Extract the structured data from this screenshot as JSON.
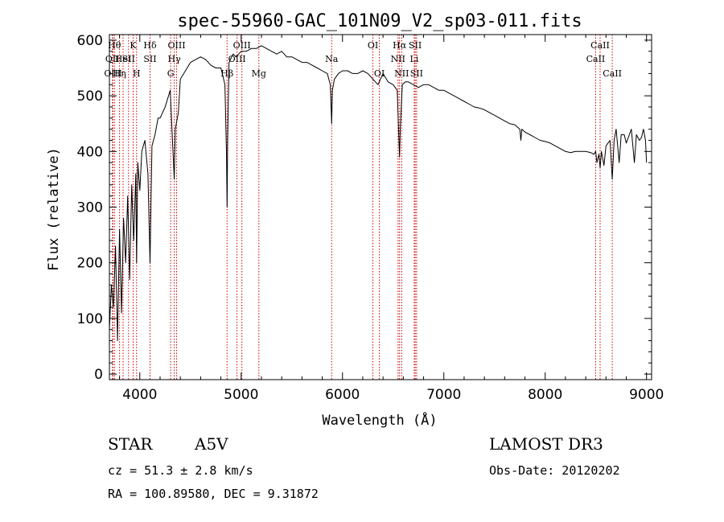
{
  "chart_data": {
    "type": "line",
    "title": "spec-55960-GAC_101N09_V2_sp03-011.fits",
    "xlabel": "Wavelength (Å)",
    "ylabel": "Flux (relative)",
    "xlim": [
      3700,
      9050
    ],
    "ylim": [
      -10,
      610
    ],
    "x_ticks": [
      4000,
      5000,
      6000,
      7000,
      8000,
      9000
    ],
    "y_ticks": [
      0,
      100,
      200,
      300,
      400,
      500,
      600
    ],
    "x_tick_labels": [
      "4000",
      "5000",
      "6000",
      "7000",
      "8000",
      "9000"
    ],
    "y_tick_labels": [
      "0",
      "100",
      "200",
      "300",
      "400",
      "500",
      "600"
    ],
    "series": [
      {
        "name": "flux",
        "color": "#000000",
        "x": [
          3700,
          3720,
          3740,
          3760,
          3780,
          3800,
          3820,
          3840,
          3860,
          3880,
          3900,
          3920,
          3940,
          3960,
          3968,
          3980,
          4000,
          4020,
          4050,
          4080,
          4101,
          4120,
          4150,
          4180,
          4200,
          4250,
          4300,
          4340,
          4350,
          4380,
          4400,
          4450,
          4500,
          4550,
          4600,
          4650,
          4700,
          4750,
          4800,
          4840,
          4855,
          4861,
          4867,
          4880,
          4920,
          4950,
          5000,
          5050,
          5100,
          5150,
          5200,
          5250,
          5300,
          5350,
          5400,
          5450,
          5500,
          5550,
          5600,
          5650,
          5700,
          5750,
          5800,
          5850,
          5880,
          5893,
          5900,
          5920,
          5960,
          6000,
          6050,
          6100,
          6150,
          6200,
          6250,
          6300,
          6350,
          6400,
          6450,
          6500,
          6540,
          6555,
          6563,
          6570,
          6590,
          6620,
          6650,
          6700,
          6750,
          6800,
          6850,
          6900,
          6950,
          7000,
          7050,
          7100,
          7150,
          7200,
          7250,
          7300,
          7350,
          7400,
          7450,
          7500,
          7550,
          7600,
          7650,
          7700,
          7750,
          7760,
          7770,
          7800,
          7850,
          7900,
          7950,
          8000,
          8050,
          8100,
          8150,
          8200,
          8250,
          8300,
          8350,
          8400,
          8450,
          8480,
          8498,
          8510,
          8530,
          8542,
          8555,
          8580,
          8600,
          8640,
          8662,
          8680,
          8700,
          8730,
          8750,
          8780,
          8800,
          8830,
          8850,
          8880,
          8900,
          8930,
          8950,
          8970,
          8990,
          9000
        ],
        "values": [
          80,
          160,
          120,
          230,
          60,
          260,
          110,
          280,
          200,
          320,
          170,
          340,
          240,
          360,
          200,
          380,
          330,
          400,
          420,
          360,
          200,
          410,
          430,
          460,
          460,
          480,
          510,
          350,
          440,
          470,
          530,
          545,
          560,
          565,
          570,
          565,
          555,
          550,
          550,
          520,
          400,
          300,
          420,
          560,
          575,
          570,
          580,
          580,
          585,
          585,
          590,
          585,
          580,
          575,
          580,
          570,
          570,
          565,
          560,
          560,
          555,
          550,
          545,
          540,
          520,
          450,
          510,
          530,
          540,
          545,
          545,
          540,
          540,
          545,
          540,
          530,
          520,
          540,
          525,
          520,
          510,
          430,
          390,
          440,
          520,
          525,
          525,
          520,
          515,
          520,
          520,
          515,
          510,
          510,
          505,
          500,
          495,
          490,
          485,
          480,
          478,
          475,
          470,
          465,
          460,
          455,
          450,
          448,
          440,
          420,
          440,
          435,
          430,
          425,
          420,
          418,
          415,
          410,
          405,
          400,
          398,
          400,
          400,
          400,
          398,
          395,
          400,
          380,
          395,
          370,
          400,
          375,
          410,
          420,
          350,
          420,
          440,
          380,
          430,
          430,
          415,
          430,
          440,
          380,
          430,
          420,
          425,
          440,
          420,
          380
        ]
      }
    ],
    "spectral_lines": [
      {
        "x": 3750,
        "label": "Hθ",
        "row": 1
      },
      {
        "x": 3730,
        "label": "OII",
        "row": 2
      },
      {
        "x": 3735,
        "label": "OIII",
        "row": 3
      },
      {
        "x": 3800,
        "label": "Hη",
        "row": 3
      },
      {
        "x": 3835,
        "label": "HeI",
        "row": 2
      },
      {
        "x": 3889,
        "label": "SII",
        "row": 2
      },
      {
        "x": 3934,
        "label": "K",
        "row": 1
      },
      {
        "x": 3968,
        "label": "H",
        "row": 3
      },
      {
        "x": 4101,
        "label": "Hδ",
        "row": 1
      },
      {
        "x": 4101,
        "label": "SII",
        "row": 2
      },
      {
        "x": 4340,
        "label": "Hγ",
        "row": 2
      },
      {
        "x": 4304,
        "label": "G",
        "row": 3
      },
      {
        "x": 4363,
        "label": "OIII",
        "row": 1
      },
      {
        "x": 4861,
        "label": "Hβ",
        "row": 3
      },
      {
        "x": 4959,
        "label": "OIII",
        "row": 2
      },
      {
        "x": 5007,
        "label": "OIII",
        "row": 1
      },
      {
        "x": 5175,
        "label": "Mg",
        "row": 3
      },
      {
        "x": 5893,
        "label": "Na",
        "row": 2
      },
      {
        "x": 6300,
        "label": "OI",
        "row": 1
      },
      {
        "x": 6364,
        "label": "OI",
        "row": 3
      },
      {
        "x": 6563,
        "label": "Hα",
        "row": 1
      },
      {
        "x": 6548,
        "label": "NII",
        "row": 2
      },
      {
        "x": 6584,
        "label": "NII",
        "row": 3
      },
      {
        "x": 6708,
        "label": "Li",
        "row": 2
      },
      {
        "x": 6717,
        "label": "SII",
        "row": 1
      },
      {
        "x": 6731,
        "label": "SII",
        "row": 3
      },
      {
        "x": 8498,
        "label": "CaII",
        "row": 2
      },
      {
        "x": 8542,
        "label": "CaII",
        "row": 1
      },
      {
        "x": 8662,
        "label": "CaII",
        "row": 3
      }
    ],
    "line_color": "#cc0000",
    "grid": false
  },
  "info": {
    "object_class": "STAR",
    "subclass": "A5V",
    "survey": "LAMOST DR3",
    "cz_text": "cz = 51.3 ± 2.8 km/s",
    "obs_date": "Obs-Date: 20120202",
    "coords": "RA = 100.89580, DEC =   9.31872"
  }
}
